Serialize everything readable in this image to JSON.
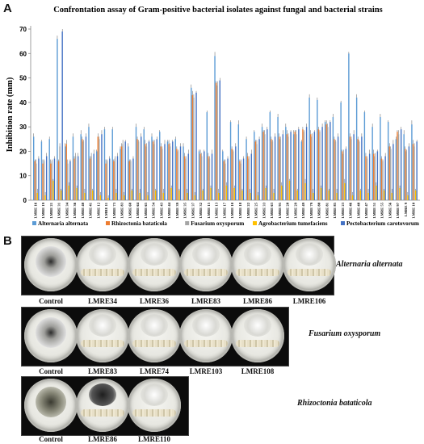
{
  "panels": {
    "a_letter": "A",
    "b_letter": "B"
  },
  "chart_data": {
    "type": "bar",
    "title": "Confrontation assay of Gram-positive bacterial isolates against fungal and bacterial strains",
    "ylabel": "Inhibition rate (mm)",
    "xlabel": "",
    "ylim": [
      0,
      70
    ],
    "yticks": [
      0,
      10,
      20,
      30,
      40,
      50,
      60,
      70
    ],
    "legend_position": "bottom",
    "grid": false,
    "categories": [
      "LMRE 16",
      "LMRE 19",
      "LMRE 21",
      "LMRE 31",
      "LMRE 34",
      "LMRE 36",
      "LMRE 40",
      "LMRE 41",
      "LMRE 12",
      "LMRE 11",
      "LMRE 73",
      "LMRE 83",
      "LMRE 60",
      "LMRE 64",
      "LMRE 65",
      "LMRE 54",
      "LMRE 43",
      "LMRE 44",
      "LMRE 39",
      "LMRE 35",
      "LMRE 37",
      "LMRE 32",
      "LMRE 15",
      "LMRE 13",
      "LMRE 17",
      "LMRE 10",
      "LMRE 18",
      "LMRE 22",
      "LMRE 25",
      "LMRE 33",
      "LMRE 63",
      "LMRE 95",
      "LMRE 28",
      "LMRE 29",
      "LMRE 49",
      "LMRE 79",
      "LMRE 88",
      "LMRE 81",
      "LMRE 85",
      "LMRE 23",
      "LMRE 46",
      "LMRE 48",
      "LMRE 47",
      "LMRE 51",
      "LMRE 55",
      "LMRE 56",
      "LMRE 97",
      "LMRE 9",
      "LMRE 10"
    ],
    "series": [
      {
        "name": "Alternaria alternata",
        "color": "#5b9bd5",
        "values": [
          26,
          24,
          25,
          66,
          22,
          26,
          27,
          30,
          20,
          29,
          29,
          21,
          22,
          30,
          29,
          26,
          28,
          24,
          25,
          22,
          46,
          20,
          36,
          59,
          20,
          32,
          31,
          25,
          28,
          30,
          36,
          34,
          30,
          27,
          24,
          42,
          41,
          32,
          34,
          40,
          60,
          42,
          36,
          30,
          34,
          32,
          25,
          27,
          31
        ]
      },
      {
        "name": "Rhizoctonia bataticola",
        "color": "#ed7d31",
        "values": [
          16,
          15,
          15,
          16,
          23,
          17,
          25,
          17,
          26,
          15,
          16,
          22,
          16,
          25,
          23,
          24,
          22,
          23,
          21,
          18,
          43,
          19,
          18,
          48,
          16,
          21,
          16,
          18,
          24,
          28,
          25,
          26,
          27,
          28,
          29,
          27,
          29,
          31,
          25,
          20,
          26,
          25,
          18,
          19,
          17,
          22,
          28,
          21,
          23
        ]
      },
      {
        "name": "Fusarium oxysporum",
        "color": "#a5a5a5",
        "values": [
          15,
          16,
          16,
          22,
          15,
          18,
          24,
          18,
          25,
          16,
          17,
          23,
          16,
          24,
          22,
          23,
          21,
          22,
          20,
          17,
          42,
          18,
          17,
          47,
          15,
          20,
          15,
          17,
          23,
          27,
          24,
          25,
          26,
          27,
          28,
          26,
          28,
          30,
          24,
          19,
          25,
          24,
          17,
          18,
          16,
          21,
          27,
          20,
          22
        ]
      },
      {
        "name": "Agrobacterium tumefaciens",
        "color": "#ffc000",
        "values": [
          3,
          2,
          8,
          4,
          6,
          5,
          3,
          4,
          2,
          1,
          3,
          2,
          4,
          3,
          2,
          4,
          3,
          5,
          4,
          3,
          2,
          4,
          5,
          3,
          6,
          5,
          4,
          3,
          2,
          5,
          3,
          6,
          8,
          4,
          7,
          3,
          5,
          4,
          3,
          7,
          2,
          4,
          3,
          6,
          4,
          3,
          5,
          2,
          4
        ]
      },
      {
        "name": "Pectobacterium carotovorum",
        "color": "#4472c4",
        "values": [
          17,
          18,
          17,
          69,
          16,
          18,
          26,
          19,
          27,
          17,
          18,
          24,
          17,
          26,
          24,
          25,
          23,
          24,
          22,
          19,
          44,
          20,
          19,
          49,
          17,
          22,
          17,
          19,
          25,
          29,
          26,
          27,
          28,
          29,
          30,
          28,
          30,
          32,
          26,
          21,
          27,
          26,
          19,
          20,
          18,
          23,
          29,
          22,
          24
        ]
      }
    ]
  },
  "panel_b": {
    "rows": [
      {
        "organism": "Alternaria alternata",
        "labels": [
          "Control",
          "LMRE34",
          "LMRE36",
          "LMRE83",
          "LMRE86",
          "LMRE106"
        ]
      },
      {
        "organism": "Fusarium oxysporum",
        "labels": [
          "Control",
          "LMRE83",
          "LMRE74",
          "LMRE103",
          "LMRE108"
        ]
      },
      {
        "organism": "Rhizoctonia bataticola",
        "labels": [
          "Control",
          "LMRE86",
          "LMRE110"
        ]
      }
    ]
  }
}
